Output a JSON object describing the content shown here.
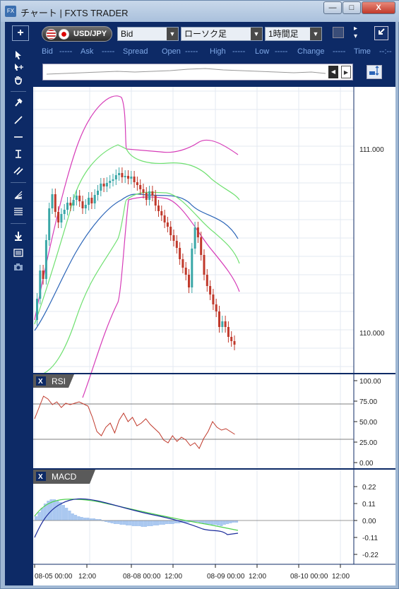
{
  "window": {
    "app_icon": "FX",
    "title": "チャート | FXTS TRADER",
    "minimize_label": "—",
    "maximize_label": "□",
    "close_label": "X"
  },
  "toolbar": {
    "add_label": "+",
    "symbol": "USD/JPY",
    "price_type": "Bid",
    "chart_type": "ローソク足",
    "timeframe": "1時間足",
    "dropdown_arrow": "▼"
  },
  "quote_bar": {
    "bid_label": "Bid",
    "bid_value": "-----",
    "ask_label": "Ask",
    "ask_value": "-----",
    "spread_label": "Spread",
    "open_label": "Open",
    "open_value": "-----",
    "high_label": "High",
    "high_value": "-----",
    "low_label": "Low",
    "low_value": "-----",
    "change_label": "Change",
    "change_value": "-----",
    "time_label": "Time",
    "time_value": "--:--"
  },
  "price_axis": {
    "labels": [
      "111.000",
      "110.000"
    ]
  },
  "panes": {
    "rsi": {
      "title": "RSI",
      "close_label": "X",
      "axis_labels": [
        "100.00",
        "75.00",
        "50.00",
        "25.00",
        "0.00"
      ]
    },
    "macd": {
      "title": "MACD",
      "close_label": "X",
      "axis_labels": [
        "0.22",
        "0.11",
        "0.00",
        "-0.11",
        "-0.22"
      ]
    }
  },
  "time_axis": {
    "labels": [
      "08-05 00:00",
      "12:00",
      "08-08 00:00",
      "12:00",
      "08-09 00:00",
      "12:00",
      "08-10 00:00",
      "12:00"
    ]
  },
  "colors": {
    "frame": "#0d2a66",
    "bullish": "#3aa7a7",
    "bearish": "#c0392b",
    "bollinger_outer": "#d63cb8",
    "bollinger_inner": "#6fe070",
    "moving_average": "#2a64b7",
    "rsi_line": "#c0392b",
    "macd_line": "#1a2a9a",
    "signal_line": "#4cd04c",
    "histogram": "#aac8f0"
  }
}
